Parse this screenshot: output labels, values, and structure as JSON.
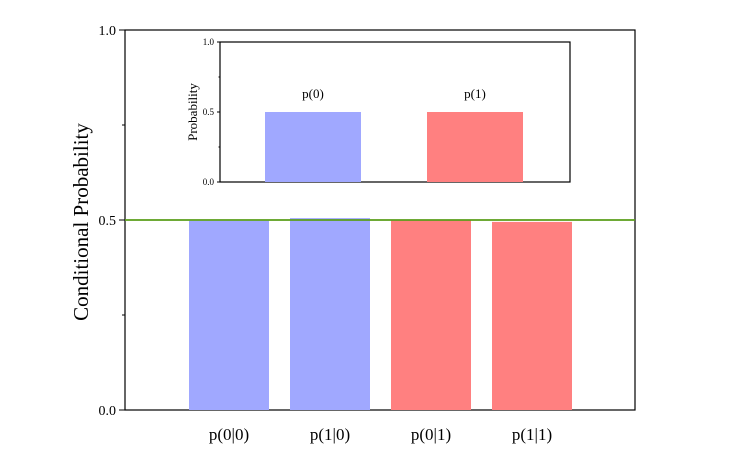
{
  "colors": {
    "blue": "#a0a8ff",
    "red": "#ff8080",
    "reference_line": "#5a9e1a"
  },
  "chart_data": [
    {
      "type": "bar",
      "title": "",
      "xlabel": "",
      "ylabel": "Conditional Probability",
      "ylim": [
        0,
        1.0
      ],
      "yticks": [
        "0.0",
        "0.5",
        "1.0"
      ],
      "categories": [
        "p(0|0)",
        "p(1|0)",
        "p(0|1)",
        "p(1|1)"
      ],
      "values": [
        0.498,
        0.505,
        0.5,
        0.495
      ],
      "bar_colors": [
        "blue",
        "blue",
        "red",
        "red"
      ],
      "reference_line": {
        "y": 0.5,
        "color": "reference_line"
      },
      "grid": false
    },
    {
      "type": "bar",
      "title": "",
      "xlabel": "",
      "ylabel": "Probability",
      "ylim": [
        0,
        1.0
      ],
      "yticks": [
        "0.0",
        "0.5",
        "1.0"
      ],
      "categories": [
        "p(0)",
        "p(1)"
      ],
      "values": [
        0.5,
        0.5
      ],
      "bar_colors": [
        "blue",
        "red"
      ],
      "category_labels_above_bars": true,
      "grid": false
    }
  ]
}
